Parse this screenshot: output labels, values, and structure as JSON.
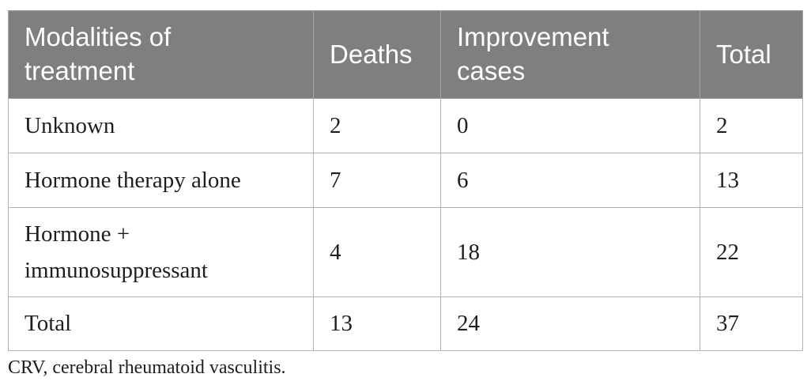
{
  "table": {
    "columns": [
      {
        "label": "Modalities of treatment"
      },
      {
        "label": "Deaths"
      },
      {
        "label": "Improvement cases"
      },
      {
        "label": "Total"
      }
    ],
    "rows": [
      {
        "modality": "Unknown",
        "deaths": "2",
        "improvement_cases": "0",
        "total": "2"
      },
      {
        "modality": "Hormone therapy alone",
        "deaths": "7",
        "improvement_cases": "6",
        "total": "13"
      },
      {
        "modality": "Hormone + immunosuppressant",
        "deaths": "4",
        "improvement_cases": "18",
        "total": "22"
      },
      {
        "modality": "Total",
        "deaths": "13",
        "improvement_cases": "24",
        "total": "37"
      }
    ],
    "footnote": "CRV, cerebral rheumatoid vasculitis."
  },
  "colors": {
    "header_bg": "#7f7f7f",
    "header_text": "#ffffff",
    "body_text": "#1e1e1e",
    "border_outer": "#9a9a9a",
    "border_inner": "#b3b3b3"
  }
}
